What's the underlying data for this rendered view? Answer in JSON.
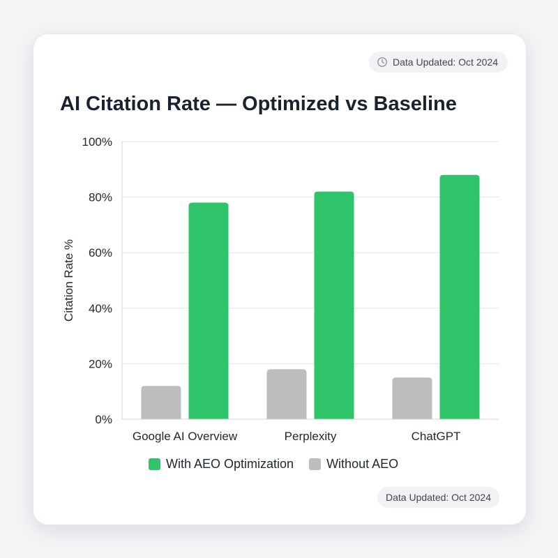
{
  "header": {
    "badge_text": "Data Updated: Oct 2024",
    "badge_icon": "clock-icon"
  },
  "footer": {
    "badge_text": "Data Updated: Oct 2024"
  },
  "colors": {
    "with_aeo": "#2fc36a",
    "without_aeo": "#bdbdbd",
    "grid": "#e3e5e8",
    "axis_text": "#222831"
  },
  "chart_data": {
    "type": "bar",
    "title": "AI Citation Rate — Optimized vs Baseline",
    "xlabel": "",
    "ylabel": "Citation Rate %",
    "ylim": [
      0,
      100
    ],
    "yticks": [
      0,
      20,
      40,
      60,
      80,
      100
    ],
    "ytick_labels": [
      "0%",
      "20%",
      "40%",
      "60%",
      "80%",
      "100%"
    ],
    "grid": true,
    "legend_position": "bottom",
    "categories": [
      "Google AI Overview",
      "Perplexity",
      "ChatGPT"
    ],
    "series": [
      {
        "name": "Without AEO",
        "color": "#bdbdbd",
        "values": [
          12,
          18,
          15
        ]
      },
      {
        "name": "With AEO Optimization",
        "color": "#2fc36a",
        "values": [
          78,
          82,
          88
        ]
      }
    ],
    "legend": [
      {
        "label": "With AEO Optimization",
        "color": "#2fc36a"
      },
      {
        "label": "Without AEO",
        "color": "#bdbdbd"
      }
    ]
  }
}
